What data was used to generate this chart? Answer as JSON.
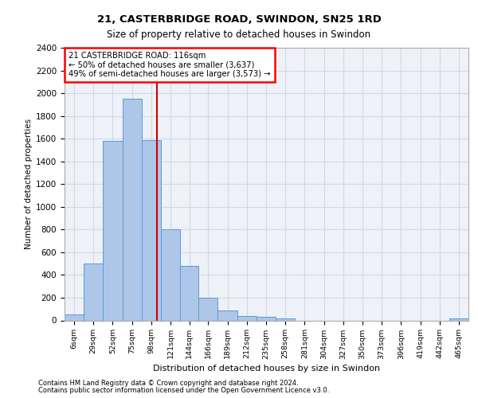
{
  "title1": "21, CASTERBRIDGE ROAD, SWINDON, SN25 1RD",
  "title2": "Size of property relative to detached houses in Swindon",
  "xlabel": "Distribution of detached houses by size in Swindon",
  "ylabel": "Number of detached properties",
  "footer1": "Contains HM Land Registry data © Crown copyright and database right 2024.",
  "footer2": "Contains public sector information licensed under the Open Government Licence v3.0.",
  "annotation_line1": "21 CASTERBRIDGE ROAD: 116sqm",
  "annotation_line2": "← 50% of detached houses are smaller (3,637)",
  "annotation_line3": "49% of semi-detached houses are larger (3,573) →",
  "property_size": 116,
  "bar_categories": [
    "6sqm",
    "29sqm",
    "52sqm",
    "75sqm",
    "98sqm",
    "121sqm",
    "144sqm",
    "166sqm",
    "189sqm",
    "212sqm",
    "235sqm",
    "258sqm",
    "281sqm",
    "304sqm",
    "327sqm",
    "350sqm",
    "373sqm",
    "396sqm",
    "419sqm",
    "442sqm",
    "465sqm"
  ],
  "bar_values": [
    50,
    500,
    1580,
    1950,
    1590,
    800,
    480,
    200,
    90,
    40,
    30,
    20,
    0,
    0,
    0,
    0,
    0,
    0,
    0,
    0,
    20
  ],
  "bar_edges": [
    6,
    29,
    52,
    75,
    98,
    121,
    144,
    166,
    189,
    212,
    235,
    258,
    281,
    304,
    327,
    350,
    373,
    396,
    419,
    442,
    465,
    488
  ],
  "bar_color": "#aec6e8",
  "bar_edge_color": "#5b9bd5",
  "line_color": "#cc0000",
  "grid_color": "#d0d8e4",
  "bg_color": "#eef2f8",
  "ylim": [
    0,
    2400
  ],
  "yticks": [
    0,
    200,
    400,
    600,
    800,
    1000,
    1200,
    1400,
    1600,
    1800,
    2000,
    2200,
    2400
  ]
}
